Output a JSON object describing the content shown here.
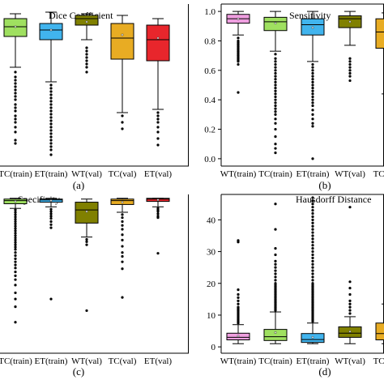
{
  "chart_data": [
    {
      "type": "box",
      "panel_label": "(a)",
      "title": "Dice Coefficient",
      "categories": [
        "TC(train)",
        "ET(train)",
        "WT(val)",
        "TC(val)",
        "ET(val)"
      ],
      "colors": [
        "#9fe060",
        "#41b4ee",
        "#808000",
        "#e8ac23",
        "#e8262c"
      ],
      "y_tick_labels_visible": false,
      "ylim": [
        0,
        1
      ],
      "grid": false,
      "boxes": [
        {
          "whisker_low": 0.61,
          "q1": 0.8,
          "median": 0.86,
          "q3": 0.91,
          "whisker_high": 0.94,
          "mean": 0.86,
          "outliers": [
            0.58,
            0.55,
            0.53,
            0.51,
            0.49,
            0.47,
            0.45,
            0.43,
            0.41,
            0.38,
            0.36,
            0.34,
            0.31,
            0.29,
            0.27,
            0.24,
            0.21,
            0.16,
            0.14
          ]
        },
        {
          "whisker_low": 0.52,
          "q1": 0.78,
          "median": 0.84,
          "q3": 0.88,
          "whisker_high": 0.95,
          "mean": 0.84,
          "outliers": [
            0.5,
            0.48,
            0.46,
            0.44,
            0.42,
            0.4,
            0.38,
            0.36,
            0.34,
            0.32,
            0.3,
            0.28,
            0.26,
            0.24,
            0.22,
            0.2,
            0.18,
            0.16,
            0.14,
            0.12,
            0.1,
            0.07
          ]
        },
        {
          "whisker_low": 0.78,
          "q1": 0.87,
          "median": 0.91,
          "q3": 0.93,
          "whisker_high": 0.94,
          "mean": 0.89,
          "outliers": [
            0.73,
            0.71,
            0.69,
            0.67,
            0.65,
            0.63,
            0.61,
            0.58
          ]
        },
        {
          "whisker_low": 0.33,
          "q1": 0.66,
          "median": 0.79,
          "q3": 0.88,
          "whisker_high": 0.93,
          "mean": 0.81,
          "outliers": [
            0.31,
            0.27,
            0.23
          ]
        },
        {
          "whisker_low": 0.35,
          "q1": 0.65,
          "median": 0.78,
          "q3": 0.87,
          "whisker_high": 0.91,
          "mean": 0.79,
          "outliers": [
            0.33,
            0.31,
            0.29,
            0.27,
            0.24,
            0.21,
            0.17,
            0.13
          ]
        }
      ]
    },
    {
      "type": "box",
      "panel_label": "(b)",
      "title": "Sensitivity",
      "categories": [
        "WT(train)",
        "TC(train)",
        "ET(train)",
        "WT(val)",
        "TC(val)"
      ],
      "colors": [
        "#ef9fe0",
        "#9fe060",
        "#41b4ee",
        "#808000",
        "#e8ac23"
      ],
      "y_tick_labels": [
        "0.0",
        "0.2",
        "0.4",
        "0.6",
        "0.8",
        "1.0"
      ],
      "ylim": [
        -0.05,
        1.05
      ],
      "grid": false,
      "boxes": [
        {
          "whisker_low": 0.84,
          "q1": 0.92,
          "median": 0.95,
          "q3": 0.98,
          "whisker_high": 1.0,
          "mean": 0.95,
          "outliers": [
            0.82,
            0.8,
            0.79,
            0.78,
            0.77,
            0.76,
            0.75,
            0.74,
            0.73,
            0.72,
            0.71,
            0.7,
            0.69,
            0.68,
            0.67,
            0.66,
            0.64,
            0.45
          ]
        },
        {
          "whisker_low": 0.73,
          "q1": 0.87,
          "median": 0.93,
          "q3": 0.96,
          "whisker_high": 1.0,
          "mean": 0.92,
          "outliers": [
            0.71,
            0.68,
            0.66,
            0.64,
            0.62,
            0.6,
            0.58,
            0.56,
            0.54,
            0.52,
            0.5,
            0.48,
            0.46,
            0.44,
            0.42,
            0.4,
            0.38,
            0.36,
            0.34,
            0.32,
            0.3,
            0.27,
            0.24,
            0.2,
            0.15,
            0.1,
            0.07,
            0.04
          ]
        },
        {
          "whisker_low": 0.66,
          "q1": 0.84,
          "median": 0.91,
          "q3": 0.95,
          "whisker_high": 1.0,
          "mean": 0.89,
          "outliers": [
            0.64,
            0.62,
            0.6,
            0.58,
            0.56,
            0.54,
            0.52,
            0.5,
            0.48,
            0.46,
            0.44,
            0.42,
            0.4,
            0.38,
            0.36,
            0.33,
            0.3,
            0.27,
            0.24,
            0.22,
            0.0
          ]
        },
        {
          "whisker_low": 0.77,
          "q1": 0.89,
          "median": 0.95,
          "q3": 0.97,
          "whisker_high": 1.0,
          "mean": 0.93,
          "outliers": [
            0.68,
            0.66,
            0.64,
            0.62,
            0.6,
            0.58,
            0.56,
            0.53
          ]
        },
        {
          "whisker_low": 0.44,
          "q1": 0.75,
          "median": 0.86,
          "q3": 0.95,
          "whisker_high": 0.99,
          "mean": 0.82,
          "outliers": [
            0.4,
            0.37,
            0.33,
            0.29,
            0.26,
            0.23
          ]
        }
      ]
    },
    {
      "type": "box",
      "panel_label": "(c)",
      "title": "Specificity",
      "categories": [
        "TC(train)",
        "ET(train)",
        "WT(val)",
        "TC(val)",
        "ET(val)"
      ],
      "colors": [
        "#9fe060",
        "#41b4ee",
        "#808000",
        "#e8ac23",
        "#e8262c"
      ],
      "y_tick_labels_visible": false,
      "ylim": [
        0.8,
        1.005
      ],
      "grid": false,
      "boxes": [
        {
          "whisker_low": 0.987,
          "q1": 0.993,
          "median": 0.997,
          "q3": 0.999,
          "whisker_high": 1.0,
          "mean": 0.996,
          "outliers": [
            0.985,
            0.982,
            0.979,
            0.976,
            0.973,
            0.97,
            0.967,
            0.964,
            0.961,
            0.958,
            0.955,
            0.952,
            0.949,
            0.946,
            0.943,
            0.94,
            0.937,
            0.934,
            0.93,
            0.926,
            0.922,
            0.918,
            0.914,
            0.91,
            0.905,
            0.9,
            0.895,
            0.888,
            0.878,
            0.87,
            0.86,
            0.84
          ]
        },
        {
          "whisker_low": 0.989,
          "q1": 0.995,
          "median": 0.998,
          "q3": 0.999,
          "whisker_high": 1.0,
          "mean": 0.997,
          "outliers": [
            0.986,
            0.983,
            0.98,
            0.977,
            0.974,
            0.97,
            0.966,
            0.962,
            0.87
          ]
        },
        {
          "whisker_low": 0.95,
          "q1": 0.968,
          "median": 0.985,
          "q3": 0.995,
          "whisker_high": 0.999,
          "mean": 0.983,
          "outliers": [
            0.947,
            0.944,
            0.94,
            0.855
          ]
        },
        {
          "whisker_low": 0.982,
          "q1": 0.992,
          "median": 0.997,
          "q3": 0.999,
          "whisker_high": 1.0,
          "mean": 0.995,
          "outliers": [
            0.979,
            0.975,
            0.97,
            0.965,
            0.96,
            0.953,
            0.946,
            0.938,
            0.93,
            0.925,
            0.918,
            0.909,
            0.872
          ]
        },
        {
          "whisker_low": 0.989,
          "q1": 0.996,
          "median": 0.999,
          "q3": 1.0,
          "whisker_high": 1.0,
          "mean": 0.998,
          "outliers": [
            0.987,
            0.985,
            0.983,
            0.98,
            0.977,
            0.975,
            0.929
          ]
        }
      ]
    },
    {
      "type": "box",
      "panel_label": "(d)",
      "title": "Hausdorff  Distance",
      "categories": [
        "WT(train)",
        "TC(train)",
        "ET(train)",
        "WT(val)",
        "TC(val)"
      ],
      "colors": [
        "#ef9fe0",
        "#9fe060",
        "#41b4ee",
        "#808000",
        "#e8ac23"
      ],
      "y_tick_labels": [
        "0",
        "10",
        "20",
        "30",
        "40"
      ],
      "ylim": [
        -2,
        48
      ],
      "grid": false,
      "boxes": [
        {
          "whisker_low": 1.0,
          "q1": 2.2,
          "median": 3.0,
          "q3": 4.3,
          "whisker_high": 7.0,
          "mean": 3.4,
          "outliers": [
            7.5,
            8.0,
            8.5,
            9.0,
            9.5,
            10.0,
            10.5,
            11.0,
            11.5,
            12.0,
            12.5,
            13.5,
            14.5,
            15.5,
            16.5,
            18.0,
            33.0,
            33.5
          ]
        },
        {
          "whisker_low": 1.0,
          "q1": 2.0,
          "median": 3.2,
          "q3": 5.5,
          "whisker_high": 11.0,
          "mean": 4.5,
          "outliers": [
            11.5,
            12,
            12.5,
            13,
            13.5,
            14,
            14.5,
            15,
            15.5,
            16,
            16.5,
            17,
            17.5,
            18,
            18.5,
            19,
            19.5,
            20,
            21,
            22,
            23,
            24,
            25,
            26,
            27,
            29,
            31,
            37,
            45
          ]
        },
        {
          "whisker_low": 1.0,
          "q1": 1.4,
          "median": 2.3,
          "q3": 4.2,
          "whisker_high": 7.5,
          "mean": 3.0,
          "outliers": [
            8,
            8.5,
            9,
            9.5,
            10,
            10.5,
            11,
            11.5,
            12,
            12.5,
            13,
            13.5,
            14,
            14.5,
            15,
            15.5,
            16,
            16.5,
            17,
            17.5,
            18,
            18.5,
            19,
            19.5,
            20,
            21,
            22,
            23,
            24,
            25,
            26,
            27,
            28,
            29,
            30,
            31,
            32,
            33,
            34,
            35,
            36,
            37,
            38,
            39,
            40,
            41,
            42,
            43,
            44,
            45,
            46,
            47
          ]
        },
        {
          "whisker_low": 1.0,
          "q1": 3.0,
          "median": 4.3,
          "q3": 6.3,
          "whisker_high": 9.5,
          "mean": 4.8,
          "outliers": [
            10.5,
            11.5,
            12.5,
            13.5,
            14.5,
            16.5,
            18.5,
            20.5,
            44
          ]
        },
        {
          "whisker_low": 1.0,
          "q1": 2.2,
          "median": 4.2,
          "q3": 7.5,
          "whisker_high": 13.5,
          "mean": 7.0,
          "outliers": [
            14.5,
            15.5,
            16.5,
            17.5,
            18.5,
            19.5,
            20.5,
            22,
            24,
            27,
            34
          ]
        }
      ]
    }
  ]
}
